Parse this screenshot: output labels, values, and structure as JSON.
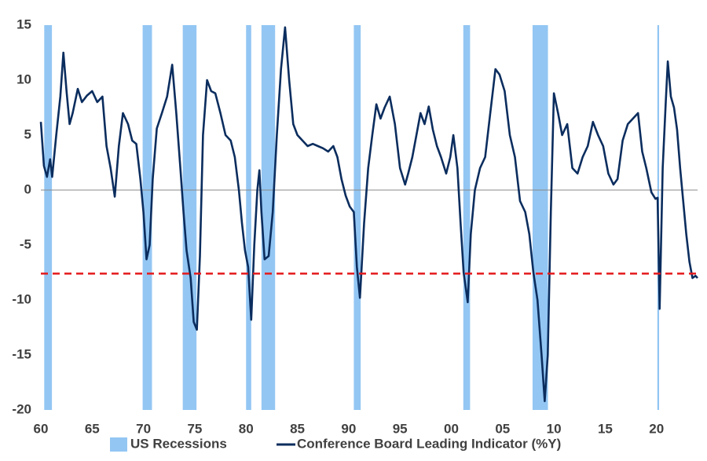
{
  "chart_data": {
    "type": "line",
    "xlim": [
      1960,
      2024
    ],
    "xticks": [
      {
        "value": 1960,
        "label": "60"
      },
      {
        "value": 1965,
        "label": "65"
      },
      {
        "value": 1970,
        "label": "70"
      },
      {
        "value": 1975,
        "label": "75"
      },
      {
        "value": 1980,
        "label": "80"
      },
      {
        "value": 1985,
        "label": "85"
      },
      {
        "value": 1990,
        "label": "90"
      },
      {
        "value": 1995,
        "label": "95"
      },
      {
        "value": 2000,
        "label": "00"
      },
      {
        "value": 2005,
        "label": "05"
      },
      {
        "value": 2010,
        "label": "10"
      },
      {
        "value": 2015,
        "label": "15"
      },
      {
        "value": 2020,
        "label": "20"
      }
    ],
    "ylim": [
      -20,
      15
    ],
    "yticks": [
      15,
      10,
      5,
      0,
      -5,
      -10,
      -15,
      -20
    ],
    "zero_line": 0,
    "threshold": {
      "value": -7.6,
      "color": "#e41a1c"
    },
    "recessions": {
      "name": "US Recessions",
      "color": "#93c6f3",
      "periods": [
        [
          1960.33,
          1961.08
        ],
        [
          1969.92,
          1970.83
        ],
        [
          1973.83,
          1975.17
        ],
        [
          1980.0,
          1980.5
        ],
        [
          1981.5,
          1982.83
        ],
        [
          1990.5,
          1991.17
        ],
        [
          2001.17,
          2001.83
        ],
        [
          2007.92,
          2009.42
        ],
        [
          2020.08,
          2020.25
        ]
      ]
    },
    "x": [
      1960.0,
      1960.3,
      1960.6,
      1960.9,
      1961.1,
      1961.5,
      1961.9,
      1962.2,
      1962.5,
      1962.8,
      1963.1,
      1963.6,
      1964.0,
      1964.5,
      1965.0,
      1965.5,
      1966.0,
      1966.4,
      1966.8,
      1967.2,
      1967.6,
      1968.0,
      1968.5,
      1968.9,
      1969.3,
      1969.7,
      1970.0,
      1970.3,
      1970.6,
      1970.9,
      1971.3,
      1971.8,
      1972.3,
      1972.8,
      1973.2,
      1973.6,
      1973.9,
      1974.2,
      1974.6,
      1974.9,
      1975.2,
      1975.5,
      1975.8,
      1976.2,
      1976.6,
      1977.0,
      1977.5,
      1978.0,
      1978.5,
      1978.9,
      1979.3,
      1979.6,
      1979.9,
      1980.2,
      1980.5,
      1980.8,
      1981.1,
      1981.3,
      1981.5,
      1981.8,
      1982.2,
      1982.6,
      1983.0,
      1983.4,
      1983.8,
      1984.2,
      1984.6,
      1985.0,
      1985.5,
      1986.0,
      1986.5,
      1987.0,
      1987.5,
      1988.0,
      1988.5,
      1988.9,
      1989.3,
      1989.7,
      1990.1,
      1990.5,
      1990.8,
      1991.1,
      1991.5,
      1991.9,
      1992.3,
      1992.7,
      1993.1,
      1993.5,
      1994.0,
      1994.5,
      1995.0,
      1995.5,
      1995.8,
      1996.2,
      1996.6,
      1997.0,
      1997.4,
      1997.8,
      1998.2,
      1998.6,
      1999.0,
      1999.5,
      1999.9,
      2000.2,
      2000.6,
      2000.9,
      2001.2,
      2001.6,
      2001.9,
      2002.3,
      2002.8,
      2003.3,
      2003.8,
      2004.3,
      2004.7,
      2005.2,
      2005.7,
      2006.2,
      2006.7,
      2007.2,
      2007.6,
      2008.0,
      2008.4,
      2008.8,
      2009.1,
      2009.4,
      2009.7,
      2010.0,
      2010.4,
      2010.8,
      2011.3,
      2011.8,
      2012.3,
      2012.8,
      2013.3,
      2013.8,
      2014.3,
      2014.8,
      2015.3,
      2015.8,
      2016.2,
      2016.7,
      2017.2,
      2017.7,
      2018.2,
      2018.6,
      2019.0,
      2019.5,
      2019.9,
      2020.1,
      2020.3,
      2020.6,
      2020.9,
      2021.1,
      2021.4,
      2021.7,
      2022.0,
      2022.3,
      2022.6,
      2022.9,
      2023.2,
      2023.5,
      2023.8,
      2024.0
    ],
    "series": [
      {
        "name": "Conference Board Leading Indicator (%Y)",
        "color": "#0b2d5e",
        "values": [
          6.2,
          2.2,
          1.2,
          2.8,
          1.2,
          5,
          8.5,
          12.5,
          9,
          6,
          7,
          9.2,
          8,
          8.6,
          9,
          8,
          8.5,
          4,
          2,
          -0.6,
          4,
          7,
          6,
          4.5,
          4.2,
          1,
          -2,
          -6.3,
          -5,
          1,
          5.6,
          7,
          8.5,
          11.4,
          7,
          2,
          -2,
          -5.5,
          -8,
          -12,
          -12.7,
          -6,
          5,
          10,
          9,
          8.8,
          7,
          5,
          4.5,
          3,
          0,
          -3,
          -5.5,
          -7,
          -11.8,
          -5,
          0,
          1.8,
          -2,
          -6.3,
          -6,
          -2,
          5,
          11,
          14.8,
          10,
          6,
          5,
          4.5,
          4,
          4.2,
          4,
          3.8,
          3.5,
          4,
          3,
          1,
          -0.5,
          -1.5,
          -2,
          -7,
          -9.8,
          -3,
          2,
          5,
          7.8,
          6.5,
          7.5,
          8.5,
          6,
          2,
          0.5,
          1.5,
          3,
          5,
          7,
          6,
          7.6,
          5.5,
          4,
          3,
          1.5,
          3,
          5,
          2,
          -3,
          -7.5,
          -10.2,
          -4,
          0,
          2,
          3,
          7,
          11,
          10.5,
          9,
          5,
          3,
          -1,
          -2,
          -4,
          -7.5,
          -10,
          -15,
          -19.2,
          -15,
          -2,
          8.8,
          7,
          5,
          6,
          2,
          1.5,
          3,
          4,
          6.2,
          5,
          4,
          1.5,
          0.5,
          1,
          4.5,
          6,
          6.5,
          7,
          3.5,
          2,
          -0.2,
          -0.8,
          -0.7,
          -10.8,
          2,
          8,
          11.7,
          8.5,
          7.5,
          5.5,
          2,
          -1,
          -4,
          -6.5,
          -8,
          -7.8,
          -8
        ]
      }
    ]
  }
}
